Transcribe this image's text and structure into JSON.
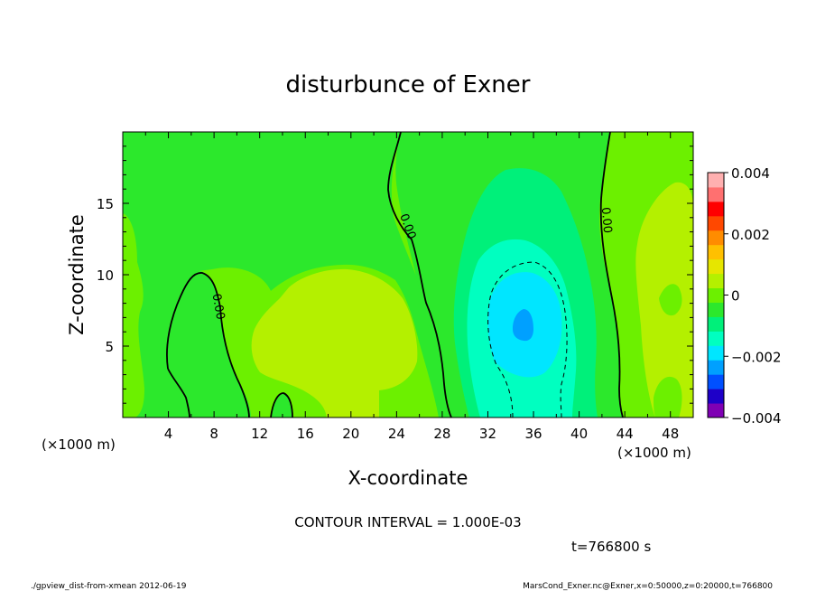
{
  "chart_data": {
    "type": "heatmap",
    "title": "disturbunce of Exner",
    "xlabel": "X-coordinate",
    "ylabel": "Z-coordinate",
    "x_unit_left": "(×1000 m)",
    "x_unit_right": "(×1000 m)",
    "xlim": [
      0,
      50
    ],
    "ylim": [
      0,
      20
    ],
    "x_ticks": [
      4,
      8,
      12,
      16,
      20,
      24,
      28,
      32,
      36,
      40,
      44,
      48
    ],
    "y_ticks": [
      5,
      10,
      15
    ],
    "contour_interval_text": "CONTOUR INTERVAL = 1.000E-03",
    "time_text": "t=766800 s",
    "footer_left": "./gpview_dist-from-xmean  2012-06-19",
    "footer_right": "MarsCond_Exner.nc@Exner,x=0:50000,z=0:20000,t=766800",
    "contour_label": "0.00",
    "colorbar": {
      "min": -0.004,
      "max": 0.004,
      "tick_labels": [
        "0.004",
        "0.002",
        "0",
        "−0.002",
        "−0.004"
      ],
      "tick_values": [
        0.004,
        0.002,
        0,
        -0.002,
        -0.004
      ],
      "level_colors": [
        "#7f00b4",
        "#1e00c8",
        "#0050ff",
        "#00a0ff",
        "#00e6ff",
        "#00ffc0",
        "#00f07a",
        "#2ce82c",
        "#6cf000",
        "#b4f000",
        "#e6e600",
        "#ffc000",
        "#ff8c00",
        "#ff4800",
        "#ff0000",
        "#ff7070",
        "#ffb0b0"
      ]
    },
    "fields": [
      {
        "level": "0 to 0.0005",
        "color": "#6cf000"
      },
      {
        "level": "0.0005 to 0.001",
        "color": "#b4f000"
      },
      {
        "level": "0 to -0.0005",
        "color": "#2ce82c"
      },
      {
        "level": "-0.0005 to -0.001",
        "color": "#00f07a"
      },
      {
        "level": "-0.001 to -0.0015",
        "color": "#00ffc0"
      },
      {
        "level": "-0.0015 to -0.002",
        "color": "#00e6ff"
      },
      {
        "level": "-0.002 to -0.0025",
        "color": "#00a0ff"
      }
    ]
  }
}
